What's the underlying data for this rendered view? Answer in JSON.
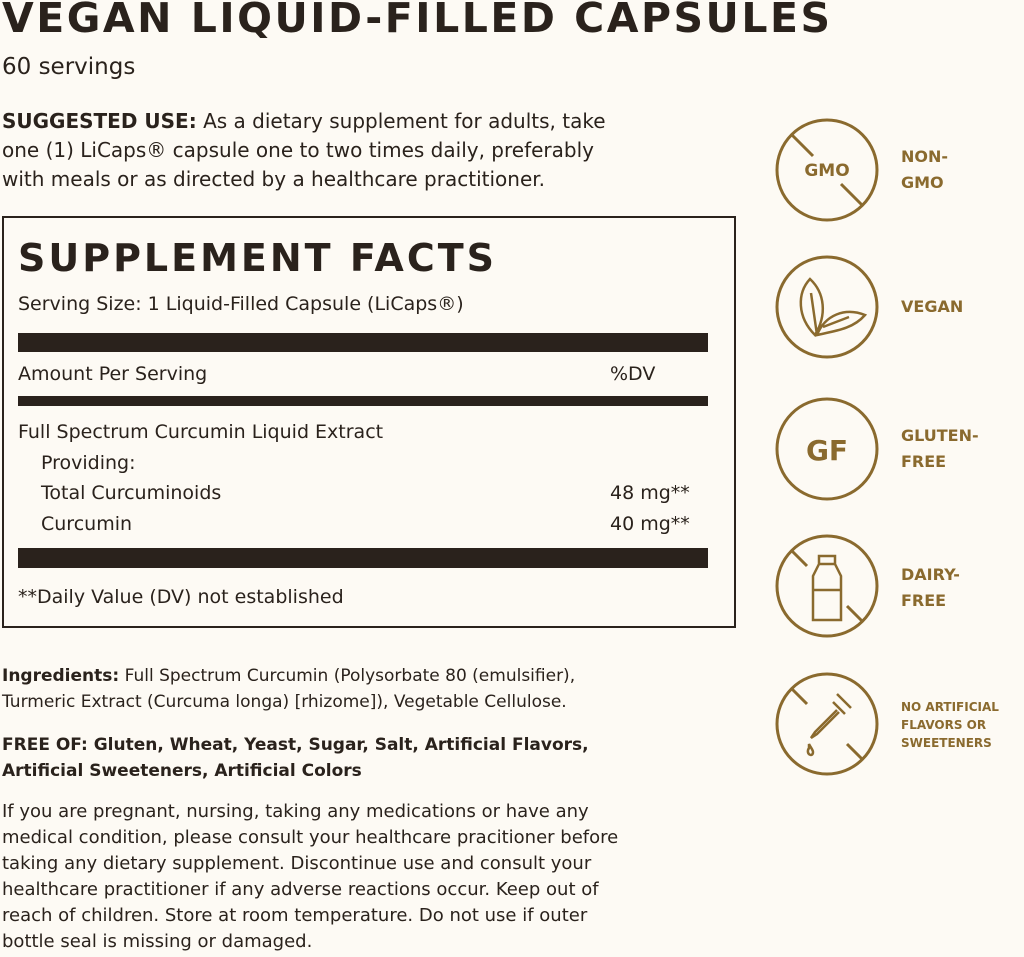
{
  "product": {
    "title": "VEGAN LIQUID-FILLED CAPSULES",
    "servings": "60 servings"
  },
  "suggested_use": {
    "label": "SUGGESTED USE:",
    "lines": [
      " As a dietary supplement for adults, take",
      "one (1) LiCaps® capsule one to two times daily, preferably",
      "with meals or as directed by a healthcare practitioner."
    ]
  },
  "facts": {
    "heading": "SUPPLEMENT FACTS",
    "serving_size": "Serving Size: 1 Liquid-Filled Capsule (LiCaps®)",
    "amount_header": "Amount Per Serving",
    "dv_header": "%DV",
    "rows": [
      {
        "name": "Full Spectrum Curcumin Liquid Extract",
        "value": ""
      },
      {
        "name": "Providing:",
        "value": ""
      },
      {
        "name": "Total Curcuminoids",
        "value": "48 mg**"
      },
      {
        "name": "Curcumin",
        "value": "40 mg**"
      }
    ],
    "footnote": "**Daily Value (DV) not established"
  },
  "ingredients": {
    "label": "Ingredients:",
    "lines": [
      " Full Spectrum Curcumin (Polysorbate 80 (emulsifier),",
      "Turmeric Extract (Curcuma longa) [rhizome]), Vegetable Cellulose."
    ]
  },
  "free_of": {
    "lines": [
      "FREE OF: Gluten, Wheat, Yeast, Sugar, Salt, Artificial Flavors,",
      "Artificial Sweeteners, Artificial Colors"
    ]
  },
  "warning": {
    "lines": [
      "If you are pregnant, nursing, taking any medications or have any",
      "medical condition, please consult your healthcare pracitioner before",
      "taking any dietary supplement. Discontinue use and consult your",
      "healthcare practitioner if any adverse reactions occur. Keep out of",
      "reach of children. Store at room temperature. Do not use if outer",
      "bottle seal is missing or damaged."
    ]
  },
  "badges": [
    {
      "icon": "gmo-crossed-icon",
      "icon_text": "GMO",
      "label": "NON-\nGMO"
    },
    {
      "icon": "leaf-icon",
      "label": "VEGAN"
    },
    {
      "icon": "gf-icon",
      "icon_text": "GF",
      "label": "GLUTEN-\nFREE"
    },
    {
      "icon": "milk-bottle-crossed-icon",
      "label": "DAIRY-\nFREE"
    },
    {
      "icon": "dropper-crossed-icon",
      "label": "NO ARTIFICIAL\nFLAVORS OR\nSWEETENERS"
    }
  ],
  "colors": {
    "background": "#fdfaf4",
    "text": "#2a221c",
    "accent": "#8a6a2e"
  }
}
